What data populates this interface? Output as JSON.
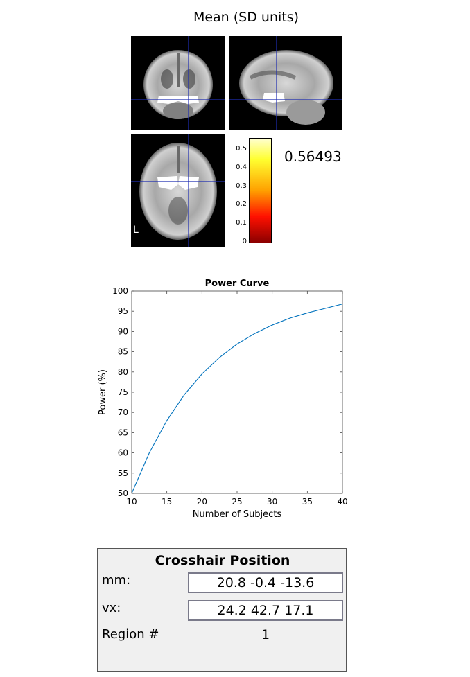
{
  "viewer": {
    "title": "Mean  (SD units)",
    "orientation_label": "L",
    "colorbar": {
      "ticks": [
        "0.5",
        "0.4",
        "0.3",
        "0.2",
        "0.1",
        "0"
      ],
      "max": 0.56,
      "min": 0,
      "current_value": "0.56493",
      "colors": [
        "#ffffd0",
        "#ffff00",
        "#ff8000",
        "#ff0000",
        "#8b0000"
      ]
    },
    "crosshair_color": "#1f2db0",
    "icons": [
      "coronal-slice-icon",
      "sagittal-slice-icon",
      "axial-slice-icon"
    ]
  },
  "chart_data": {
    "type": "line",
    "title": "Power Curve",
    "xlabel": "Number of Subjects",
    "ylabel": "Power (%)",
    "xlim": [
      10,
      40
    ],
    "ylim": [
      50,
      100
    ],
    "xticks": [
      "10",
      "15",
      "20",
      "25",
      "30",
      "35",
      "40"
    ],
    "yticks": [
      "100",
      "95",
      "90",
      "85",
      "80",
      "75",
      "70",
      "65",
      "60",
      "55",
      "50"
    ],
    "grid": false,
    "series": [
      {
        "color": "#0072bd",
        "x": [
          10,
          12.5,
          15,
          17.5,
          20,
          22.5,
          25,
          27.5,
          30,
          32.5,
          35,
          37.5,
          40
        ],
        "y": [
          50.0,
          60.0,
          68.0,
          74.4,
          79.5,
          83.6,
          86.9,
          89.5,
          91.6,
          93.3,
          94.6,
          95.7,
          96.8
        ]
      }
    ]
  },
  "crosshair": {
    "title": "Crosshair Position",
    "mm_label": "mm:",
    "mm_value": "20.8 -0.4 -13.6",
    "vx_label": "vx:",
    "vx_value": "24.2 42.7 17.1",
    "region_label": "Region #",
    "region_value": "1"
  }
}
